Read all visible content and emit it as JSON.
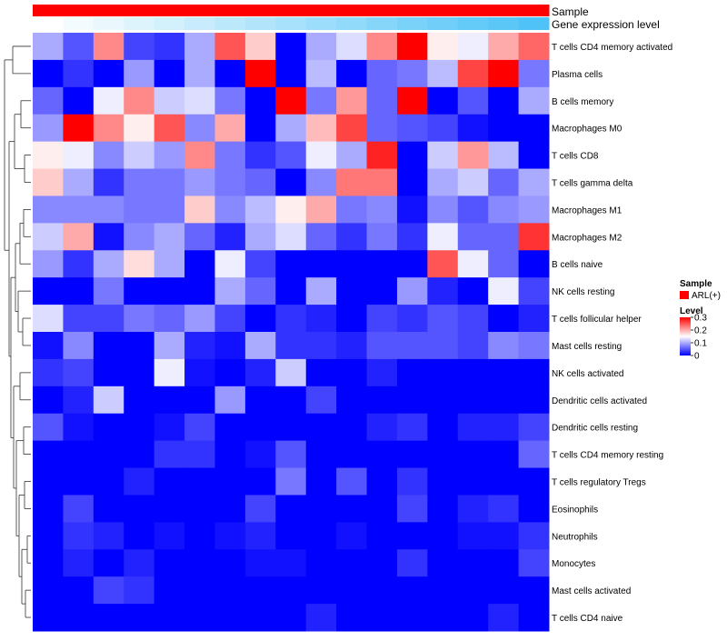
{
  "chart_data": {
    "type": "heatmap",
    "title": "",
    "annotation_tracks": [
      {
        "name": "Sample",
        "label": "Sample"
      },
      {
        "name": "Gene expression level",
        "label": "Gene expression level"
      }
    ],
    "rows": [
      "T cells CD4 memory activated",
      "Plasma cells",
      "B cells memory",
      "Macrophages M0",
      "T cells CD8",
      "T cells gamma delta",
      "Macrophages M1",
      "Macrophages M2",
      "B cells naive",
      "NK cells resting",
      "T cells follicular helper",
      "Mast cells resting",
      "NK cells activated",
      "Dendritic cells activated",
      "Dendritic cells resting",
      "T cells CD4 memory resting",
      "T cells regulatory  Tregs",
      "Eosinophils",
      "Neutrophils",
      "Monocytes",
      "Mast cells activated",
      "T cells CD4 naive"
    ],
    "columns": 17,
    "values": [
      [
        0.1,
        0.05,
        0.22,
        0.04,
        0.03,
        0.1,
        0.25,
        0.18,
        0.0,
        0.1,
        0.13,
        0.22,
        0.3,
        0.16,
        0.14,
        0.2,
        0.24
      ],
      [
        0.0,
        0.03,
        0.0,
        0.09,
        0.0,
        0.1,
        0.0,
        0.3,
        0.0,
        0.11,
        0.0,
        0.06,
        0.07,
        0.11,
        0.26,
        0.3,
        0.07
      ],
      [
        0.06,
        0.0,
        0.14,
        0.22,
        0.12,
        0.13,
        0.07,
        0.0,
        0.3,
        0.07,
        0.21,
        0.06,
        0.3,
        0.0,
        0.05,
        0.0,
        0.1
      ],
      [
        0.09,
        0.3,
        0.22,
        0.16,
        0.25,
        0.08,
        0.2,
        0.0,
        0.1,
        0.19,
        0.26,
        0.06,
        0.05,
        0.04,
        0.01,
        0.0,
        0.0
      ],
      [
        0.16,
        0.14,
        0.08,
        0.12,
        0.09,
        0.22,
        0.07,
        0.03,
        0.05,
        0.14,
        0.1,
        0.28,
        0.0,
        0.12,
        0.21,
        0.11,
        0.0
      ],
      [
        0.18,
        0.1,
        0.03,
        0.07,
        0.07,
        0.09,
        0.07,
        0.06,
        0.0,
        0.08,
        0.23,
        0.23,
        0.0,
        0.1,
        0.12,
        0.06,
        0.1
      ],
      [
        0.08,
        0.08,
        0.08,
        0.07,
        0.07,
        0.18,
        0.08,
        0.11,
        0.16,
        0.2,
        0.07,
        0.08,
        0.01,
        0.08,
        0.05,
        0.08,
        0.09
      ],
      [
        0.12,
        0.2,
        0.01,
        0.08,
        0.1,
        0.06,
        0.02,
        0.1,
        0.13,
        0.06,
        0.03,
        0.07,
        0.03,
        0.14,
        0.06,
        0.06,
        0.27
      ],
      [
        0.09,
        0.03,
        0.1,
        0.17,
        0.1,
        0.0,
        0.14,
        0.04,
        0.0,
        0.0,
        0.0,
        0.0,
        0.0,
        0.25,
        0.14,
        0.06,
        0.0
      ],
      [
        0.0,
        0.0,
        0.07,
        0.0,
        0.0,
        0.0,
        0.1,
        0.06,
        0.0,
        0.1,
        0.0,
        0.0,
        0.09,
        0.02,
        0.0,
        0.14,
        0.04
      ],
      [
        0.13,
        0.04,
        0.04,
        0.07,
        0.06,
        0.09,
        0.04,
        0.0,
        0.03,
        0.02,
        0.0,
        0.04,
        0.03,
        0.05,
        0.04,
        0.0,
        0.02
      ],
      [
        0.01,
        0.08,
        0.0,
        0.0,
        0.1,
        0.02,
        0.01,
        0.1,
        0.03,
        0.03,
        0.02,
        0.05,
        0.05,
        0.05,
        0.04,
        0.08,
        0.07
      ],
      [
        0.03,
        0.04,
        0.0,
        0.0,
        0.14,
        0.01,
        0.0,
        0.02,
        0.12,
        0.0,
        0.0,
        0.02,
        0.0,
        0.0,
        0.0,
        0.0,
        0.0
      ],
      [
        0.0,
        0.02,
        0.12,
        0.0,
        0.0,
        0.0,
        0.09,
        0.0,
        0.0,
        0.04,
        0.0,
        0.0,
        0.0,
        0.0,
        0.0,
        0.0,
        0.0
      ],
      [
        0.05,
        0.01,
        0.0,
        0.0,
        0.01,
        0.04,
        0.0,
        0.0,
        0.0,
        0.0,
        0.0,
        0.02,
        0.03,
        0.0,
        0.02,
        0.02,
        0.04
      ],
      [
        0.0,
        0.0,
        0.0,
        0.0,
        0.03,
        0.03,
        0.0,
        0.01,
        0.05,
        0.0,
        0.0,
        0.0,
        0.0,
        0.0,
        0.0,
        0.0,
        0.06
      ],
      [
        0.0,
        0.0,
        0.0,
        0.02,
        0.0,
        0.0,
        0.0,
        0.0,
        0.07,
        0.0,
        0.05,
        0.0,
        0.03,
        0.0,
        0.0,
        0.0,
        0.0
      ],
      [
        0.0,
        0.04,
        0.0,
        0.0,
        0.0,
        0.0,
        0.0,
        0.04,
        0.0,
        0.0,
        0.0,
        0.0,
        0.04,
        0.0,
        0.02,
        0.03,
        0.0
      ],
      [
        0.0,
        0.03,
        0.02,
        0.0,
        0.01,
        0.0,
        0.01,
        0.02,
        0.0,
        0.0,
        0.01,
        0.0,
        0.0,
        0.0,
        0.01,
        0.01,
        0.03
      ],
      [
        0.0,
        0.02,
        0.0,
        0.02,
        0.0,
        0.0,
        0.0,
        0.01,
        0.01,
        0.0,
        0.0,
        0.0,
        0.03,
        0.0,
        0.0,
        0.0,
        0.04
      ],
      [
        0.0,
        0.0,
        0.04,
        0.03,
        0.0,
        0.0,
        0.0,
        0.0,
        0.0,
        0.0,
        0.0,
        0.0,
        0.0,
        0.0,
        0.0,
        0.0,
        0.0
      ],
      [
        0.0,
        0.0,
        0.0,
        0.0,
        0.0,
        0.0,
        0.0,
        0.0,
        0.0,
        0.02,
        0.0,
        0.0,
        0.0,
        0.0,
        0.0,
        0.02,
        0.0
      ]
    ],
    "gene_expression_level": [
      0.0,
      0.06,
      0.12,
      0.19,
      0.25,
      0.31,
      0.38,
      0.44,
      0.5,
      0.56,
      0.62,
      0.69,
      0.75,
      0.81,
      0.88,
      0.94,
      1.0
    ],
    "color_scale": {
      "low": "#0000ff",
      "mid": "#ffffff",
      "high": "#ff0000",
      "range": [
        0,
        0.3
      ],
      "ticks": [
        0,
        0.1,
        0.2,
        0.3
      ],
      "tick_labels": [
        "0",
        "0.1",
        "0.2",
        "0.3"
      ]
    },
    "legend": {
      "sample_title": "Sample",
      "sample_item": "ARL(+)",
      "sample_color": "#ff0000",
      "level_title": "Level"
    },
    "colors": {
      "sample_bar": "#ff0000",
      "gene_low": "#ffffff",
      "gene_high": "#4fc3f7"
    }
  }
}
